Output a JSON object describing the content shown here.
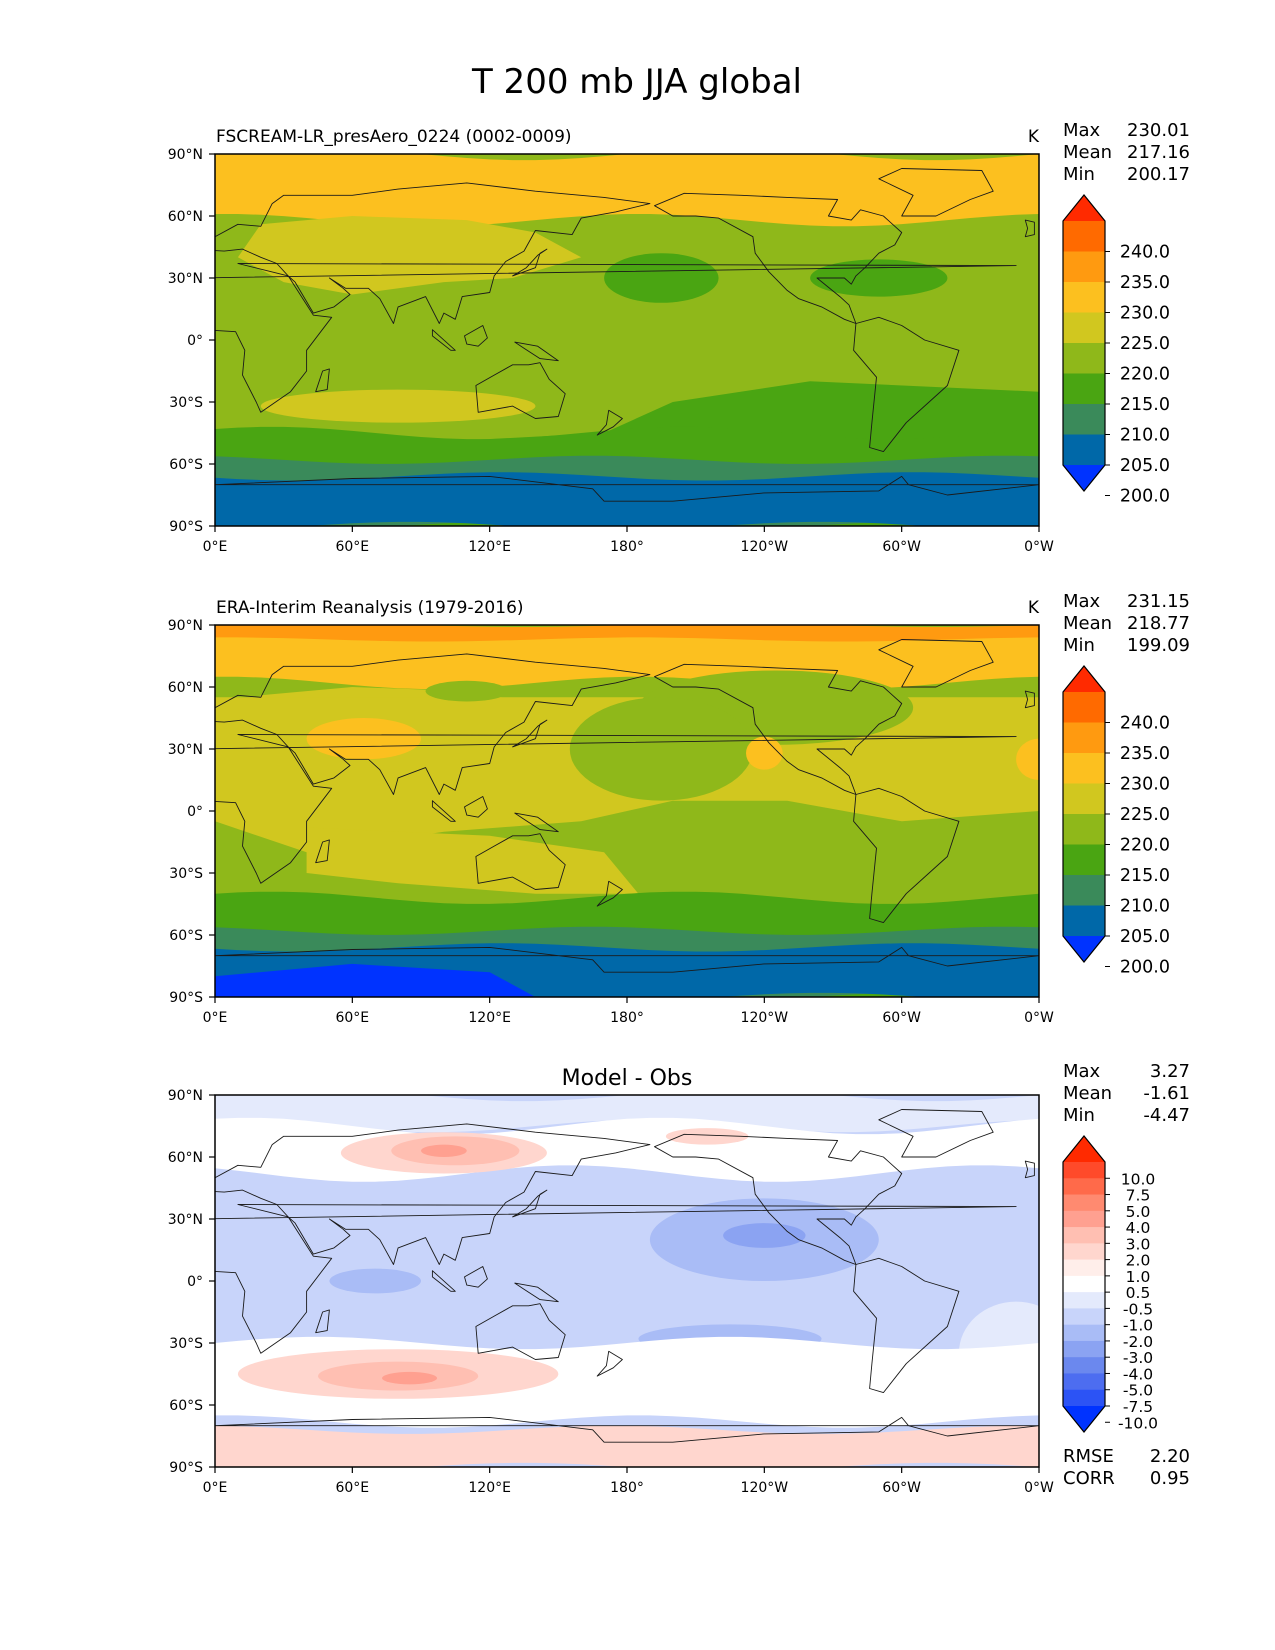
{
  "figure": {
    "title": "T 200 mb JJA global"
  },
  "axes": {
    "lon_ticks": [
      "0°E",
      "60°E",
      "120°E",
      "180°",
      "120°W",
      "60°W",
      "0°W"
    ],
    "lat_ticks": [
      "90°N",
      "60°N",
      "30°N",
      "0°",
      "30°S",
      "60°S",
      "90°S"
    ]
  },
  "panels": [
    {
      "id": "model",
      "left_title": "FSCREAM-LR_presAero_0224 (0002-0009)",
      "center_title": "",
      "units": "K",
      "stats": [
        {
          "label": "Max",
          "value": "230.01"
        },
        {
          "label": "Mean",
          "value": "217.16"
        },
        {
          "label": "Min",
          "value": "200.17"
        }
      ],
      "colorbar": {
        "labels": [
          "240.0",
          "235.0",
          "230.0",
          "225.0",
          "220.0",
          "215.0",
          "210.0",
          "205.0",
          "200.0"
        ],
        "colors": [
          "#ff2a00",
          "#ff6a00",
          "#ff9a10",
          "#fcc01f",
          "#d1c71f",
          "#8fb81a",
          "#4aa512",
          "#3a8a5a",
          "#0068a8",
          "#0033ff"
        ]
      }
    },
    {
      "id": "obs",
      "left_title": "ERA-Interim Reanalysis (1979-2016)",
      "center_title": "",
      "units": "K",
      "stats": [
        {
          "label": "Max",
          "value": "231.15"
        },
        {
          "label": "Mean",
          "value": "218.77"
        },
        {
          "label": "Min",
          "value": "199.09"
        }
      ],
      "colorbar": {
        "labels": [
          "240.0",
          "235.0",
          "230.0",
          "225.0",
          "220.0",
          "215.0",
          "210.0",
          "205.0",
          "200.0"
        ],
        "colors": [
          "#ff2a00",
          "#ff6a00",
          "#ff9a10",
          "#fcc01f",
          "#d1c71f",
          "#8fb81a",
          "#4aa512",
          "#3a8a5a",
          "#0068a8",
          "#0033ff"
        ]
      }
    },
    {
      "id": "diff",
      "left_title": "",
      "center_title": "Model - Obs",
      "units": "",
      "stats": [
        {
          "label": "Max",
          "value": "3.27"
        },
        {
          "label": "Mean",
          "value": "-1.61"
        },
        {
          "label": "Min",
          "value": "-4.47"
        }
      ],
      "extra_stats": [
        {
          "label": "RMSE",
          "value": "2.20"
        },
        {
          "label": "CORR",
          "value": "0.95"
        }
      ],
      "colorbar": {
        "labels": [
          "10.0",
          "7.5",
          "5.0",
          "4.0",
          "3.0",
          "2.0",
          "1.0",
          "0.5",
          "-0.5",
          "-1.0",
          "-2.0",
          "-3.0",
          "-4.0",
          "-5.0",
          "-7.5",
          "-10.0"
        ],
        "colors": [
          "#ff2a00",
          "#ff4a2a",
          "#ff6a4a",
          "#ff8a70",
          "#ffa090",
          "#ffbfb2",
          "#ffd6ce",
          "#ffeeea",
          "#ffffff",
          "#e4eafc",
          "#c8d4fa",
          "#a9bcf6",
          "#8ba3f2",
          "#6b88ee",
          "#4d6df0",
          "#2c53f5",
          "#0033ff"
        ]
      }
    }
  ]
}
